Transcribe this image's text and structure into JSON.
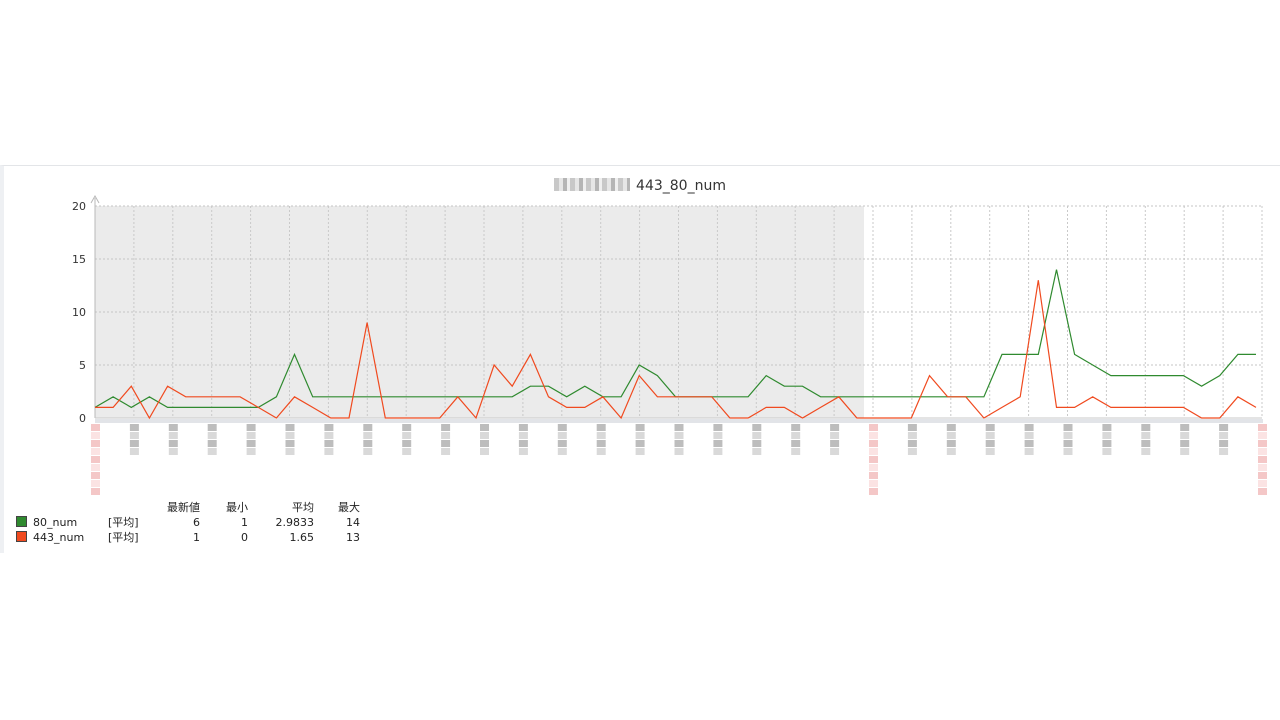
{
  "chart_data": {
    "type": "line",
    "title": "443_80_num",
    "ylim": [
      0,
      20
    ],
    "yticks": [
      0,
      5,
      10,
      15,
      20
    ],
    "grid": true,
    "legend_placement": "bottom-left",
    "series": [
      {
        "name": "80_num",
        "color": "#2f8a2f",
        "values": [
          1,
          2,
          1,
          2,
          1,
          1,
          1,
          1,
          1,
          1,
          2,
          6,
          2,
          2,
          2,
          2,
          2,
          2,
          2,
          2,
          2,
          2,
          2,
          2,
          3,
          3,
          2,
          3,
          2,
          2,
          5,
          4,
          2,
          2,
          2,
          2,
          2,
          4,
          3,
          3,
          2,
          2,
          2,
          2,
          2,
          2,
          2,
          2,
          2,
          2,
          6,
          6,
          6,
          14,
          6,
          5,
          4,
          4,
          4,
          4,
          4,
          3,
          4,
          6,
          6
        ]
      },
      {
        "name": "443_num",
        "color": "#f04a1f",
        "values": [
          1,
          1,
          3,
          0,
          3,
          2,
          2,
          2,
          2,
          1,
          0,
          2,
          1,
          0,
          0,
          9,
          0,
          0,
          0,
          0,
          2,
          0,
          5,
          3,
          6,
          2,
          1,
          1,
          2,
          0,
          4,
          2,
          2,
          2,
          2,
          0,
          0,
          1,
          1,
          0,
          1,
          2,
          0,
          0,
          0,
          0,
          4,
          2,
          2,
          0,
          1,
          2,
          13,
          1,
          1,
          2,
          1,
          1,
          1,
          1,
          1,
          0,
          0,
          2,
          1
        ]
      }
    ]
  },
  "legend": {
    "headers": [
      "最新値",
      "最小",
      "平均",
      "最大"
    ],
    "rows": [
      {
        "name": "80_num",
        "func": "[平均]",
        "last": "6",
        "min": "1",
        "avg": "2.9833",
        "max": "14",
        "color": "#2f8a2f"
      },
      {
        "name": "443_num",
        "func": "[平均]",
        "last": "1",
        "min": "0",
        "avg": "1.65",
        "max": "13",
        "color": "#f04a1f"
      }
    ]
  }
}
